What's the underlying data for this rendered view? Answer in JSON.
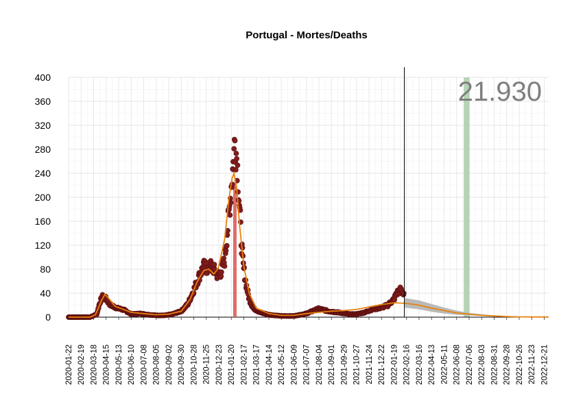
{
  "chart_data": {
    "type": "scatter",
    "title": "Portugal - Mortes/Deaths",
    "xlabel": "",
    "ylabel": "",
    "xlim": [
      "2020-01-22",
      "2022-12-31"
    ],
    "ylim": [
      0,
      400
    ],
    "yticks": [
      0,
      40,
      80,
      120,
      160,
      200,
      240,
      280,
      320,
      360,
      400
    ],
    "xticks": [
      "2020-01-22",
      "2020-02-19",
      "2020-03-18",
      "2020-04-15",
      "2020-05-13",
      "2020-06-10",
      "2020-07-08",
      "2020-08-05",
      "2020-09-02",
      "2020-09-30",
      "2020-10-28",
      "2020-11-25",
      "2020-12-23",
      "2021-01-20",
      "2021-02-17",
      "2021-03-17",
      "2021-04-14",
      "2021-05-12",
      "2021-06-09",
      "2021-07-07",
      "2021-08-04",
      "2021-09-01",
      "2021-09-29",
      "2021-10-27",
      "2021-11-24",
      "2021-12-22",
      "2022-01-19",
      "2022-02-16",
      "2022-03-16",
      "2022-04-13",
      "2022-05-11",
      "2022-06-08",
      "2022-07-06",
      "2022-08-03",
      "2022-08-31",
      "2022-09-28",
      "2022-10-26",
      "2022-11-23",
      "2022-12-21"
    ],
    "grid": true,
    "annotation_total": "21.930",
    "today_line": "2022-02-11",
    "highlight_band": [
      "2022-06-24",
      "2022-07-07"
    ],
    "peak_marker": "2021-01-28",
    "colors": {
      "points": "#7f1d1d",
      "points_stroke": "#5c0f0f",
      "smooth": "#e8820c",
      "forecast_band": "#b3b3b3",
      "highlight": "#a8cda8",
      "peak_bar": "#d9534f",
      "vline": "#000000",
      "grid": "#e5e5e5"
    },
    "series": [
      {
        "name": "",
        "kind": "daily_points",
        "anchors": [
          [
            "2020-01-22",
            0
          ],
          [
            "2020-03-10",
            0
          ],
          [
            "2020-03-25",
            5
          ],
          [
            "2020-04-01",
            25
          ],
          [
            "2020-04-08",
            35
          ],
          [
            "2020-04-15",
            30
          ],
          [
            "2020-04-25",
            20
          ],
          [
            "2020-05-10",
            15
          ],
          [
            "2020-05-25",
            12
          ],
          [
            "2020-06-10",
            5
          ],
          [
            "2020-07-01",
            6
          ],
          [
            "2020-07-20",
            4
          ],
          [
            "2020-08-05",
            3
          ],
          [
            "2020-08-25",
            3
          ],
          [
            "2020-09-10",
            5
          ],
          [
            "2020-09-30",
            10
          ],
          [
            "2020-10-15",
            22
          ],
          [
            "2020-10-28",
            45
          ],
          [
            "2020-11-10",
            70
          ],
          [
            "2020-11-20",
            85
          ],
          [
            "2020-11-28",
            80
          ],
          [
            "2020-12-05",
            85
          ],
          [
            "2020-12-12",
            80
          ],
          [
            "2020-12-20",
            70
          ],
          [
            "2020-12-28",
            75
          ],
          [
            "2021-01-05",
            95
          ],
          [
            "2021-01-12",
            150
          ],
          [
            "2021-01-18",
            200
          ],
          [
            "2021-01-24",
            255
          ],
          [
            "2021-01-28",
            295
          ],
          [
            "2021-02-02",
            260
          ],
          [
            "2021-02-07",
            190
          ],
          [
            "2021-02-11",
            130
          ],
          [
            "2021-02-16",
            85
          ],
          [
            "2021-02-22",
            55
          ],
          [
            "2021-03-01",
            30
          ],
          [
            "2021-03-10",
            15
          ],
          [
            "2021-03-25",
            8
          ],
          [
            "2021-04-14",
            4
          ],
          [
            "2021-05-12",
            2
          ],
          [
            "2021-06-09",
            2
          ],
          [
            "2021-07-07",
            6
          ],
          [
            "2021-07-20",
            10
          ],
          [
            "2021-08-04",
            14
          ],
          [
            "2021-08-25",
            10
          ],
          [
            "2021-09-15",
            8
          ],
          [
            "2021-10-10",
            5
          ],
          [
            "2021-10-27",
            5
          ],
          [
            "2021-11-15",
            8
          ],
          [
            "2021-12-01",
            13
          ],
          [
            "2021-12-22",
            16
          ],
          [
            "2022-01-05",
            20
          ],
          [
            "2022-01-19",
            30
          ],
          [
            "2022-01-25",
            40
          ],
          [
            "2022-02-02",
            45
          ],
          [
            "2022-02-10",
            40
          ]
        ]
      },
      {
        "name": "",
        "kind": "smooth",
        "values": [
          [
            "2020-01-22",
            0
          ],
          [
            "2020-03-10",
            0
          ],
          [
            "2020-03-22",
            4
          ],
          [
            "2020-04-05",
            28
          ],
          [
            "2020-04-12",
            38
          ],
          [
            "2020-04-20",
            32
          ],
          [
            "2020-05-05",
            18
          ],
          [
            "2020-05-20",
            14
          ],
          [
            "2020-06-10",
            8
          ],
          [
            "2020-07-08",
            6
          ],
          [
            "2020-08-05",
            4
          ],
          [
            "2020-09-02",
            5
          ],
          [
            "2020-09-30",
            10
          ],
          [
            "2020-10-20",
            30
          ],
          [
            "2020-11-05",
            60
          ],
          [
            "2020-11-20",
            78
          ],
          [
            "2020-12-01",
            80
          ],
          [
            "2020-12-12",
            72
          ],
          [
            "2020-12-22",
            82
          ],
          [
            "2021-01-05",
            130
          ],
          [
            "2021-01-15",
            200
          ],
          [
            "2021-01-22",
            232
          ],
          [
            "2021-01-26",
            240
          ],
          [
            "2021-02-01",
            215
          ],
          [
            "2021-02-08",
            150
          ],
          [
            "2021-02-17",
            85
          ],
          [
            "2021-03-01",
            40
          ],
          [
            "2021-03-17",
            15
          ],
          [
            "2021-04-14",
            6
          ],
          [
            "2021-05-12",
            3
          ],
          [
            "2021-06-09",
            3
          ],
          [
            "2021-07-07",
            6
          ],
          [
            "2021-08-04",
            8
          ],
          [
            "2021-09-01",
            10
          ],
          [
            "2021-09-29",
            11
          ],
          [
            "2021-10-27",
            13
          ],
          [
            "2021-11-24",
            17
          ],
          [
            "2021-12-22",
            21
          ],
          [
            "2022-01-19",
            24
          ],
          [
            "2022-02-16",
            23
          ],
          [
            "2022-03-16",
            20
          ],
          [
            "2022-04-13",
            15
          ],
          [
            "2022-05-11",
            11
          ],
          [
            "2022-06-08",
            7
          ],
          [
            "2022-07-06",
            5
          ],
          [
            "2022-08-03",
            3
          ],
          [
            "2022-08-31",
            2
          ],
          [
            "2022-09-28",
            1
          ],
          [
            "2022-10-26",
            0.5
          ],
          [
            "2022-11-23",
            0.3
          ],
          [
            "2022-12-31",
            0.2
          ]
        ]
      },
      {
        "name": "",
        "kind": "forecast_band",
        "upper": [
          [
            "2022-02-11",
            32
          ],
          [
            "2022-03-16",
            28
          ],
          [
            "2022-04-13",
            22
          ],
          [
            "2022-05-11",
            16
          ],
          [
            "2022-06-08",
            11
          ],
          [
            "2022-07-06",
            7
          ],
          [
            "2022-08-03",
            5
          ],
          [
            "2022-08-31",
            3
          ],
          [
            "2022-09-28",
            2
          ],
          [
            "2022-10-26",
            1
          ],
          [
            "2022-11-23",
            0.6
          ],
          [
            "2022-12-31",
            0.4
          ]
        ],
        "lower": [
          [
            "2022-02-11",
            16
          ],
          [
            "2022-03-16",
            13
          ],
          [
            "2022-04-13",
            9
          ],
          [
            "2022-05-11",
            6
          ],
          [
            "2022-06-08",
            4
          ],
          [
            "2022-07-06",
            3
          ],
          [
            "2022-08-03",
            2
          ],
          [
            "2022-08-31",
            1
          ],
          [
            "2022-09-28",
            0.5
          ],
          [
            "2022-10-26",
            0.2
          ],
          [
            "2022-11-23",
            0.1
          ],
          [
            "2022-12-31",
            0
          ]
        ]
      }
    ]
  }
}
